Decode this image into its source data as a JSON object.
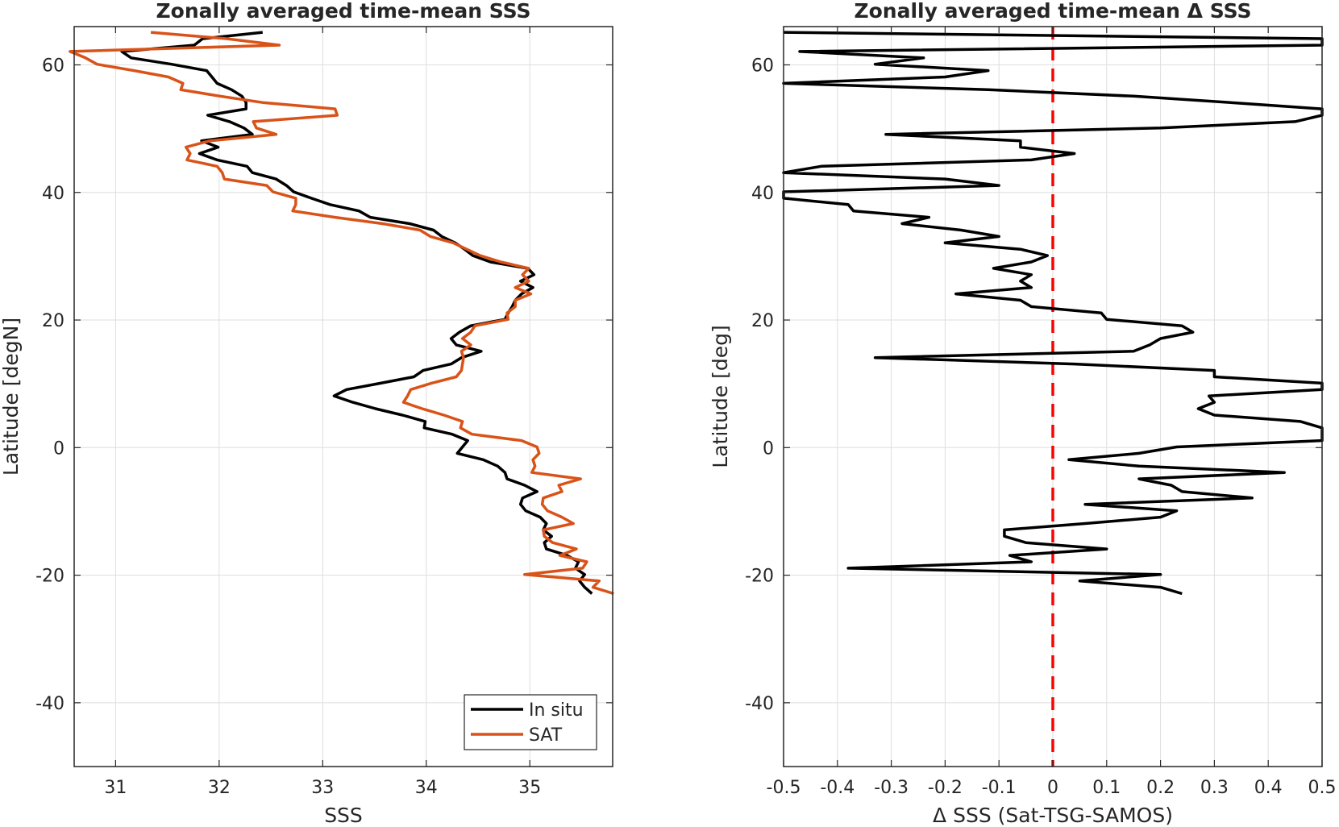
{
  "chart_data": [
    {
      "type": "line",
      "title": "Zonally averaged time-mean SSS",
      "xlabel": "SSS",
      "ylabel": "Latitude [degN]",
      "xlim": [
        30.6,
        35.8
      ],
      "ylim": [
        -50,
        66
      ],
      "x_ticks": [
        "31",
        "32",
        "33",
        "34",
        "35"
      ],
      "y_ticks": [
        "-40",
        "-20",
        "0",
        "20",
        "40",
        "60"
      ],
      "grid": true,
      "legend_position": "bottom-right",
      "series": [
        {
          "name": "In situ",
          "color": "#000000",
          "lat": [
            65.1,
            64.1,
            63.1,
            62.1,
            61.1,
            60.1,
            59.1,
            58.1,
            57.1,
            56.1,
            55.1,
            54.1,
            53.1,
            52.1,
            51.1,
            50.1,
            49.1,
            48.1,
            47.1,
            46.1,
            45.1,
            44.1,
            43.1,
            42.1,
            41.1,
            40.1,
            39.1,
            38.1,
            37.1,
            36.1,
            35.1,
            34.1,
            33.1,
            32.1,
            31.1,
            30.1,
            29.1,
            28.1,
            27.1,
            26.1,
            25.1,
            24.1,
            23.1,
            22.1,
            21.1,
            20.1,
            19.1,
            18.1,
            17.1,
            16.1,
            15.1,
            14.1,
            13.1,
            12.1,
            11.1,
            10.1,
            9.1,
            8.1,
            7.1,
            6.1,
            5.1,
            4.1,
            3.1,
            2.1,
            1.1,
            0.1,
            -0.9,
            -1.9,
            -2.9,
            -3.9,
            -4.9,
            -5.9,
            -6.9,
            -7.9,
            -8.9,
            -9.9,
            -10.9,
            -11.9,
            -12.9,
            -13.9,
            -14.9,
            -15.9,
            -16.9,
            -17.9,
            -18.9,
            -19.9,
            -20.9,
            -21.9,
            -22.9
          ],
          "values": [
            32.42,
            31.84,
            31.76,
            31.06,
            31.15,
            31.54,
            31.88,
            31.93,
            31.98,
            32.12,
            32.22,
            32.26,
            32.26,
            31.89,
            32.1,
            32.24,
            32.32,
            31.83,
            31.99,
            31.81,
            31.98,
            32.27,
            32.32,
            32.55,
            32.65,
            32.72,
            32.89,
            33.07,
            33.35,
            33.46,
            33.84,
            34.07,
            34.15,
            34.28,
            34.37,
            34.45,
            34.62,
            34.98,
            35.04,
            34.91,
            35.03,
            34.92,
            34.86,
            34.83,
            34.79,
            34.76,
            34.43,
            34.32,
            34.24,
            34.29,
            34.53,
            34.34,
            34.24,
            33.97,
            33.88,
            33.56,
            33.23,
            33.11,
            33.29,
            33.51,
            33.77,
            33.99,
            33.98,
            34.25,
            34.4,
            34.35,
            34.3,
            34.55,
            34.69,
            34.76,
            34.78,
            34.95,
            35.07,
            34.93,
            34.91,
            34.96,
            35.1,
            35.16,
            35.13,
            35.21,
            35.14,
            35.16,
            35.36,
            35.47,
            35.44,
            35.53,
            35.48,
            35.53,
            35.6
          ]
        },
        {
          "name": "SAT",
          "color": "#D95319",
          "lat": [
            65.1,
            64.1,
            63.1,
            62.1,
            61.1,
            60.1,
            59.1,
            58.1,
            57.1,
            56.1,
            55.1,
            54.1,
            53.1,
            52.1,
            51.1,
            50.1,
            49.1,
            48.1,
            47.1,
            46.1,
            45.1,
            44.1,
            43.1,
            42.1,
            41.1,
            40.1,
            39.1,
            38.1,
            37.1,
            36.1,
            35.1,
            34.1,
            33.1,
            32.1,
            31.1,
            30.1,
            29.1,
            28.1,
            27.1,
            26.1,
            25.1,
            24.1,
            23.1,
            22.1,
            21.1,
            20.1,
            19.1,
            18.1,
            17.1,
            16.1,
            15.1,
            14.1,
            13.1,
            12.1,
            11.1,
            10.1,
            9.1,
            8.1,
            7.1,
            6.1,
            5.1,
            4.1,
            3.1,
            2.1,
            1.1,
            0.1,
            -0.9,
            -1.9,
            -2.9,
            -3.9,
            -4.9,
            -5.9,
            -6.9,
            -7.9,
            -8.9,
            -9.9,
            -10.9,
            -11.9,
            -12.9,
            -13.9,
            -14.9,
            -15.9,
            -16.9,
            -17.9,
            -18.9,
            -19.9,
            -20.9,
            -21.9,
            -22.9
          ],
          "values": [
            31.34,
            32.07,
            32.58,
            30.56,
            30.71,
            30.82,
            31.18,
            31.51,
            31.65,
            31.63,
            32.01,
            32.42,
            33.12,
            33.14,
            32.33,
            32.36,
            32.55,
            31.91,
            31.68,
            31.72,
            31.69,
            31.98,
            32.03,
            32.05,
            32.46,
            32.52,
            32.74,
            32.74,
            32.71,
            33.12,
            33.58,
            33.94,
            34.04,
            34.26,
            34.39,
            34.52,
            34.72,
            34.99,
            34.93,
            34.99,
            34.86,
            35.01,
            34.86,
            34.86,
            34.78,
            34.79,
            34.47,
            34.43,
            34.35,
            34.43,
            34.34,
            34.36,
            34.35,
            34.34,
            34.29,
            34.05,
            33.85,
            33.82,
            33.78,
            33.96,
            34.17,
            34.35,
            34.33,
            34.44,
            34.92,
            35.07,
            35.09,
            35.03,
            35.05,
            35.02,
            35.49,
            35.28,
            35.31,
            35.13,
            35.12,
            35.17,
            35.31,
            35.42,
            35.13,
            35.14,
            35.22,
            35.45,
            35.29,
            35.55,
            35.51,
            34.95,
            35.67,
            35.61,
            35.81
          ]
        }
      ]
    },
    {
      "type": "line",
      "title": "Zonally averaged time-mean Δ SSS",
      "xlabel": "Δ SSS (Sat-TSG-SAMOS)",
      "ylabel": "Latitude [deg]",
      "xlim": [
        -0.5,
        0.5
      ],
      "ylim": [
        -50,
        66
      ],
      "x_ticks": [
        "-0.5",
        "-0.4",
        "-0.3",
        "-0.2",
        "-0.1",
        "0",
        "0.1",
        "0.2",
        "0.3",
        "0.4",
        "0.5"
      ],
      "y_ticks": [
        "-40",
        "-20",
        "0",
        "20",
        "40",
        "60"
      ],
      "grid": true,
      "reference_line": {
        "x": 0,
        "color": "#FF0000",
        "style": "dashed"
      },
      "series": [
        {
          "color": "#000000",
          "lat": [
            65.1,
            64.1,
            63.1,
            62.1,
            61.1,
            60.1,
            59.1,
            58.1,
            57.1,
            56.1,
            55.1,
            54.1,
            53.1,
            52.1,
            51.1,
            50.1,
            49.1,
            48.1,
            47.1,
            46.1,
            45.1,
            44.1,
            43.1,
            42.1,
            41.1,
            40.1,
            39.1,
            38.1,
            37.1,
            36.1,
            35.1,
            34.1,
            33.1,
            32.1,
            31.1,
            30.1,
            29.1,
            28.1,
            27.1,
            26.1,
            25.1,
            24.1,
            23.1,
            22.1,
            21.1,
            20.1,
            19.1,
            18.1,
            17.1,
            16.1,
            15.1,
            14.1,
            13.1,
            12.1,
            11.1,
            10.1,
            9.1,
            8.1,
            7.1,
            6.1,
            5.1,
            4.1,
            3.1,
            2.1,
            1.1,
            0.1,
            -0.9,
            -1.9,
            -2.9,
            -3.9,
            -4.9,
            -5.9,
            -6.9,
            -7.9,
            -8.9,
            -9.9,
            -10.9,
            -11.9,
            -12.9,
            -13.9,
            -14.9,
            -15.9,
            -16.9,
            -17.9,
            -18.9,
            -19.9,
            -20.9,
            -21.9,
            -22.9
          ],
          "values": [
            -0.5,
            0.5,
            0.5,
            -0.47,
            -0.24,
            -0.33,
            -0.12,
            -0.2,
            -0.5,
            -0.12,
            0.15,
            0.33,
            0.5,
            0.5,
            0.45,
            0.2,
            -0.31,
            -0.06,
            -0.06,
            0.04,
            -0.04,
            -0.43,
            -0.5,
            -0.2,
            -0.1,
            -0.5,
            -0.5,
            -0.38,
            -0.37,
            -0.23,
            -0.28,
            -0.17,
            -0.1,
            -0.2,
            -0.06,
            -0.01,
            -0.04,
            -0.11,
            -0.04,
            -0.06,
            -0.04,
            -0.18,
            -0.06,
            -0.04,
            0.09,
            0.1,
            0.24,
            0.26,
            0.2,
            0.18,
            0.15,
            -0.33,
            0.04,
            0.3,
            0.3,
            0.5,
            0.5,
            0.29,
            0.3,
            0.27,
            0.3,
            0.46,
            0.5,
            0.5,
            0.5,
            0.23,
            0.16,
            0.03,
            0.16,
            0.43,
            0.16,
            0.22,
            0.24,
            0.37,
            0.06,
            0.23,
            0.2,
            0.06,
            -0.09,
            -0.09,
            -0.05,
            0.1,
            -0.08,
            -0.04,
            -0.38,
            0.2,
            0.05,
            0.2,
            0.24
          ]
        }
      ]
    }
  ],
  "legend": {
    "items": [
      "In situ",
      "SAT"
    ]
  }
}
